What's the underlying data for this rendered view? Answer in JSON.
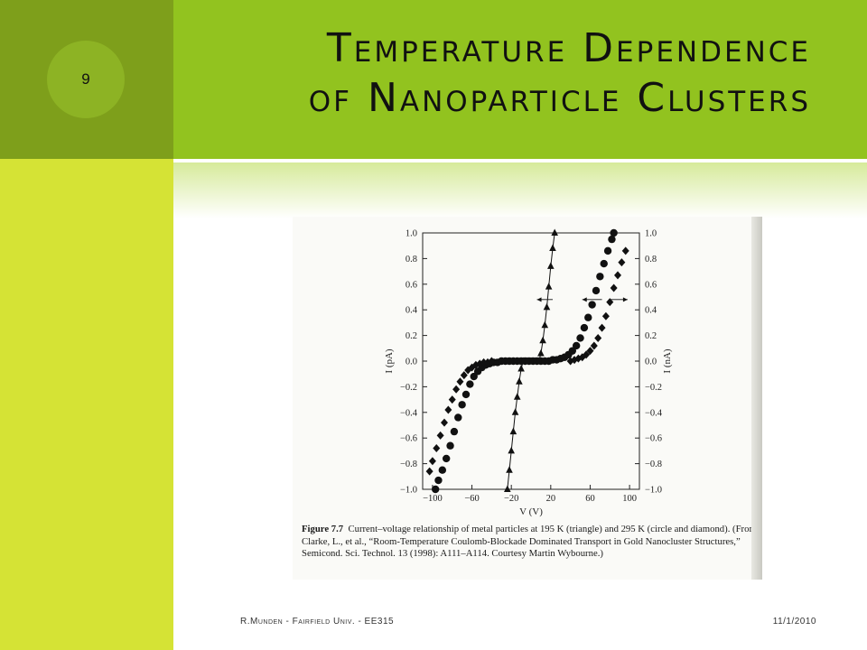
{
  "slide": {
    "number": "9",
    "title_line1": "Temperature Dependence",
    "title_line2": "of Nanoparticle Clusters",
    "footer_left": "R.Munden - Fairfield Univ. - EE315",
    "footer_right": "11/1/2010"
  },
  "colors": {
    "sidebar": "#d5e335",
    "sidebar_top": "#7e9f1b",
    "header": "#92c31f",
    "number_circle": "#8db324"
  },
  "figure": {
    "caption_label": "Figure 7.7",
    "caption_text": "Current–voltage relationship of metal particles at 195 K (triangle) and 295 K (circle and diamond). (From Clarke, L., et al., “Room-Temperature Coulomb-Blockade Dominated Transport in Gold Nanocluster Structures,” Semicond. Sci. Technol. 13 (1998): A111–A114. Courtesy Martin Wybourne.)"
  },
  "chart_data": {
    "type": "scatter",
    "xlabel": "V (V)",
    "ylabel": "I (pA)",
    "y2label": "I (nA)",
    "xlim": [
      -110,
      110
    ],
    "ylim": [
      -1.0,
      1.0
    ],
    "x_ticks": [
      "−100",
      "−60",
      "−20",
      "20",
      "60",
      "100"
    ],
    "x_tick_values": [
      -100,
      -60,
      -20,
      20,
      60,
      100
    ],
    "y_ticks": [
      "1.0",
      "0.8",
      "0.6",
      "0.4",
      "0.2",
      "0.0",
      "−0.2",
      "−0.4",
      "−0.6",
      "−0.8",
      "−1.0"
    ],
    "y_tick_values": [
      1.0,
      0.8,
      0.6,
      0.4,
      0.2,
      0.0,
      -0.2,
      -0.4,
      -0.6,
      -0.8,
      -1.0
    ],
    "grid": false,
    "series": [
      {
        "marker": "triangle",
        "x": [
          -24,
          -22,
          -20,
          -18,
          -16,
          -14,
          -12,
          -10,
          -8,
          -4,
          0,
          4,
          8,
          10,
          12,
          14,
          16,
          18,
          20,
          22,
          24
        ],
        "y": [
          -1.0,
          -0.85,
          -0.7,
          -0.55,
          -0.4,
          -0.28,
          -0.16,
          -0.06,
          0.0,
          0.0,
          0.0,
          0.0,
          0.0,
          0.06,
          0.16,
          0.28,
          0.42,
          0.58,
          0.74,
          0.88,
          1.0
        ]
      },
      {
        "marker": "circle",
        "x": [
          -97,
          -94,
          -90,
          -86,
          -82,
          -78,
          -74,
          -70,
          -66,
          -62,
          -58,
          -54,
          -50,
          -46,
          -42,
          -38,
          -34,
          -30,
          -26,
          -22,
          -18,
          -14,
          -10,
          -6,
          -2,
          2,
          6,
          10,
          14,
          18,
          22,
          26,
          30,
          34,
          38,
          42,
          46,
          50,
          54,
          58,
          62,
          66,
          70,
          74,
          78,
          82,
          84
        ],
        "y": [
          -1.0,
          -0.93,
          -0.85,
          -0.76,
          -0.66,
          -0.55,
          -0.44,
          -0.34,
          -0.26,
          -0.18,
          -0.12,
          -0.08,
          -0.05,
          -0.03,
          -0.02,
          -0.01,
          -0.01,
          0.0,
          0.0,
          0.0,
          0.0,
          0.0,
          0.0,
          0.0,
          0.0,
          0.0,
          0.0,
          0.0,
          0.0,
          0.0,
          0.01,
          0.01,
          0.02,
          0.03,
          0.05,
          0.08,
          0.12,
          0.18,
          0.26,
          0.34,
          0.44,
          0.55,
          0.66,
          0.76,
          0.86,
          0.95,
          1.0
        ]
      },
      {
        "marker": "diamond",
        "x": [
          -103,
          -100,
          -96,
          -92,
          -88,
          -84,
          -80,
          -76,
          -72,
          -68,
          -64,
          -60,
          -56,
          -52,
          -48,
          -44,
          -40,
          40,
          44,
          48,
          52,
          56,
          60,
          64,
          68,
          72,
          76,
          80,
          84,
          88,
          92,
          96
        ],
        "y": [
          -0.86,
          -0.78,
          -0.68,
          -0.58,
          -0.48,
          -0.38,
          -0.3,
          -0.22,
          -0.16,
          -0.11,
          -0.07,
          -0.05,
          -0.03,
          -0.02,
          -0.01,
          -0.01,
          0.0,
          0.0,
          0.01,
          0.02,
          0.03,
          0.05,
          0.08,
          0.12,
          0.18,
          0.26,
          0.35,
          0.46,
          0.57,
          0.67,
          0.77,
          0.86
        ]
      }
    ]
  }
}
